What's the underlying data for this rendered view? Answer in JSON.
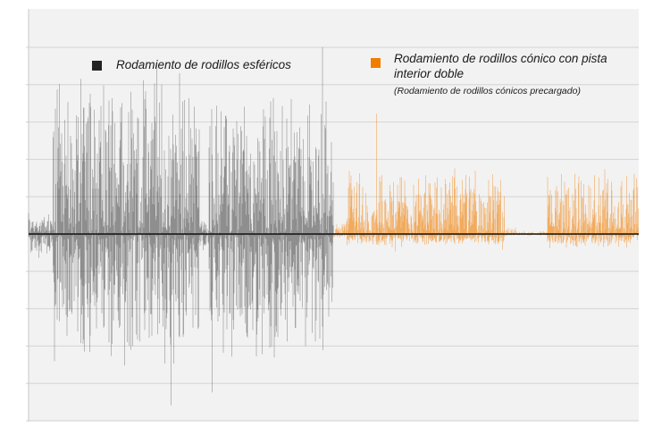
{
  "chart_data": {
    "type": "area",
    "title": "",
    "xlabel": "",
    "ylabel": "",
    "grid": true,
    "legend_placement": "top",
    "axis_color": "#111111",
    "grid_color": "#d4d4d4",
    "background": "#f2f2f2",
    "ylim": [
      -5,
      6
    ],
    "series": [
      {
        "name": "Rodamiento de rodillos esféricos",
        "color": "#222222",
        "x_range": [
          0,
          0.5
        ],
        "segments": [
          {
            "from": 0.0,
            "to": 0.04,
            "amp_up": 0.7,
            "amp_down": 0.6
          },
          {
            "from": 0.04,
            "to": 0.28,
            "amp_up": 4.6,
            "amp_down": 3.8
          },
          {
            "from": 0.28,
            "to": 0.295,
            "amp_up": 0.6,
            "amp_down": 0.6
          },
          {
            "from": 0.295,
            "to": 0.5,
            "amp_up": 3.9,
            "amp_down": 3.6
          }
        ]
      },
      {
        "name": "Rodamiento de rodillos cónico con pista interior doble",
        "subtitle": "(Rodamiento de rodillos cónicos precargado)",
        "color": "#f07d00",
        "x_range": [
          0.5,
          1.0
        ],
        "segments": [
          {
            "from": 0.5,
            "to": 0.52,
            "amp_up": 0.3,
            "amp_down": 0.1
          },
          {
            "from": 0.52,
            "to": 0.78,
            "amp_up": 1.9,
            "amp_down": 0.35
          },
          {
            "from": 0.78,
            "to": 0.8,
            "amp_up": 0.2,
            "amp_down": 0.05
          },
          {
            "from": 0.8,
            "to": 0.85,
            "amp_up": 0.1,
            "amp_down": 0.05
          },
          {
            "from": 0.85,
            "to": 1.0,
            "amp_up": 1.8,
            "amp_down": 0.4
          }
        ]
      }
    ]
  }
}
